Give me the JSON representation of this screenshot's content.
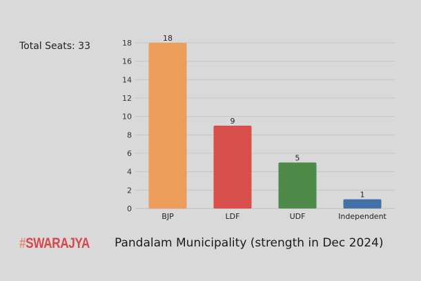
{
  "annotation": "Total Seats: 33",
  "logo": {
    "hash": "#",
    "text": "SWARAJYA"
  },
  "chart_data": {
    "type": "bar",
    "title": "Pandalam Municipality (strength in Dec 2024)",
    "categories": [
      "BJP",
      "LDF",
      "UDF",
      "Independent"
    ],
    "values": [
      18,
      9,
      5,
      1
    ],
    "colors": [
      "#ec9d5a",
      "#d94f4c",
      "#4e8a48",
      "#4470a8"
    ],
    "ylim": [
      0,
      18
    ],
    "yticks": [
      0,
      2,
      4,
      6,
      8,
      10,
      12,
      14,
      16,
      18
    ],
    "grid": true,
    "data_labels": true
  }
}
